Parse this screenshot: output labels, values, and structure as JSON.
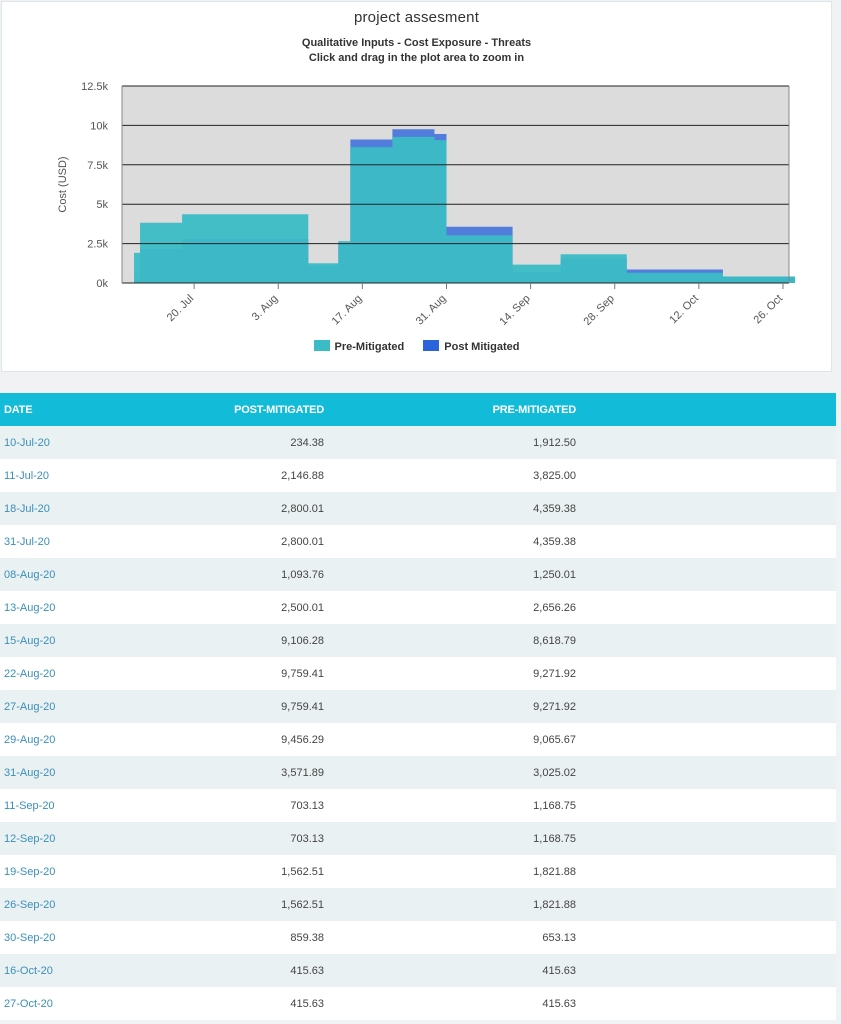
{
  "chart_data": {
    "type": "area",
    "title": "project assesment",
    "subtitle_lines": [
      "Qualitative Inputs - Cost Exposure - Threats",
      "Click and drag in the plot area to zoom in"
    ],
    "ylabel": "Cost (USD)",
    "xlabel": "",
    "ylim": [
      0,
      12500
    ],
    "yticks": [
      0,
      2500,
      5000,
      7500,
      10000,
      12500
    ],
    "ytick_labels": [
      "0k",
      "2.5k",
      "5k",
      "7.5k",
      "10k",
      "12.5k"
    ],
    "x_range": [
      "2020-07-08",
      "2020-10-27"
    ],
    "xticks": [
      "2020-07-20",
      "2020-08-03",
      "2020-08-17",
      "2020-08-31",
      "2020-09-14",
      "2020-09-28",
      "2020-10-12",
      "2020-10-26"
    ],
    "xtick_labels": [
      "20. Jul",
      "3. Aug",
      "17. Aug",
      "31. Aug",
      "14. Sep",
      "28. Sep",
      "12. Oct",
      "26. Oct"
    ],
    "grid": true,
    "step": "left",
    "legend_position": "bottom",
    "x": [
      "2020-07-10",
      "2020-07-11",
      "2020-07-18",
      "2020-07-31",
      "2020-08-08",
      "2020-08-13",
      "2020-08-15",
      "2020-08-22",
      "2020-08-27",
      "2020-08-29",
      "2020-08-31",
      "2020-09-11",
      "2020-09-12",
      "2020-09-19",
      "2020-09-26",
      "2020-09-30",
      "2020-10-16",
      "2020-10-27"
    ],
    "series": [
      {
        "name": "Pre-Mitigated",
        "color": "#3bbcc4",
        "values": [
          1912.5,
          3825.0,
          4359.38,
          4359.38,
          1250.01,
          2656.26,
          8618.79,
          9271.92,
          9271.92,
          9065.67,
          3025.02,
          1168.75,
          1168.75,
          1821.88,
          1821.88,
          653.13,
          415.63,
          415.63
        ]
      },
      {
        "name": "Post Mitigated",
        "color": "#2b63dd",
        "values": [
          234.38,
          2146.88,
          2800.01,
          2800.01,
          1093.76,
          2500.01,
          9106.28,
          9759.41,
          9759.41,
          9456.29,
          3571.89,
          703.13,
          703.13,
          1562.51,
          1562.51,
          859.38,
          415.63,
          415.63
        ]
      }
    ],
    "colors": {
      "plot_background": "#dcdcdc",
      "grid": "#222222",
      "header": "#12bcd8",
      "row_alt": "#eaf1f3",
      "date_link": "#3a8fb7"
    }
  },
  "table": {
    "headers": {
      "date": "DATE",
      "post": "POST-MITIGATED",
      "pre": "PRE-MITIGATED"
    },
    "rows": [
      {
        "date": "10-Jul-20",
        "post": "234.38",
        "pre": "1,912.50"
      },
      {
        "date": "11-Jul-20",
        "post": "2,146.88",
        "pre": "3,825.00"
      },
      {
        "date": "18-Jul-20",
        "post": "2,800.01",
        "pre": "4,359.38"
      },
      {
        "date": "31-Jul-20",
        "post": "2,800.01",
        "pre": "4,359.38"
      },
      {
        "date": "08-Aug-20",
        "post": "1,093.76",
        "pre": "1,250.01"
      },
      {
        "date": "13-Aug-20",
        "post": "2,500.01",
        "pre": "2,656.26"
      },
      {
        "date": "15-Aug-20",
        "post": "9,106.28",
        "pre": "8,618.79"
      },
      {
        "date": "22-Aug-20",
        "post": "9,759.41",
        "pre": "9,271.92"
      },
      {
        "date": "27-Aug-20",
        "post": "9,759.41",
        "pre": "9,271.92"
      },
      {
        "date": "29-Aug-20",
        "post": "9,456.29",
        "pre": "9,065.67"
      },
      {
        "date": "31-Aug-20",
        "post": "3,571.89",
        "pre": "3,025.02"
      },
      {
        "date": "11-Sep-20",
        "post": "703.13",
        "pre": "1,168.75"
      },
      {
        "date": "12-Sep-20",
        "post": "703.13",
        "pre": "1,168.75"
      },
      {
        "date": "19-Sep-20",
        "post": "1,562.51",
        "pre": "1,821.88"
      },
      {
        "date": "26-Sep-20",
        "post": "1,562.51",
        "pre": "1,821.88"
      },
      {
        "date": "30-Sep-20",
        "post": "859.38",
        "pre": "653.13"
      },
      {
        "date": "16-Oct-20",
        "post": "415.63",
        "pre": "415.63"
      },
      {
        "date": "27-Oct-20",
        "post": "415.63",
        "pre": "415.63"
      }
    ]
  }
}
